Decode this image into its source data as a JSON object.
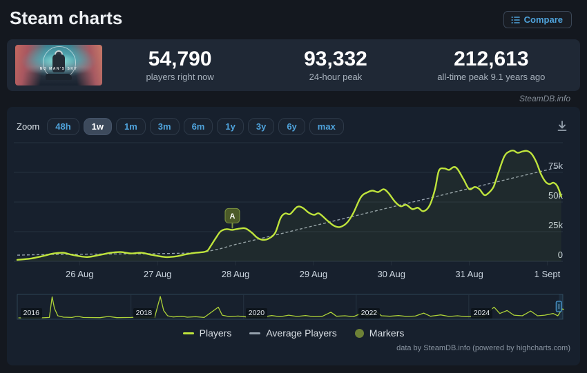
{
  "header": {
    "title": "Steam charts",
    "compare_label": "Compare"
  },
  "stats": {
    "capsule_title": "NO MAN'S SKY",
    "current": {
      "value": "54,790",
      "label": "players right now"
    },
    "peak24": {
      "value": "93,332",
      "label": "24-hour peak"
    },
    "alltime": {
      "value": "212,613",
      "label": "all-time peak 9.1 years ago"
    }
  },
  "watermark": "SteamDB.info",
  "toolbar": {
    "zoom_label": "Zoom",
    "ranges": [
      "48h",
      "1w",
      "1m",
      "3m",
      "6m",
      "1y",
      "3y",
      "6y",
      "max"
    ],
    "selected": "1w"
  },
  "legend": {
    "items": [
      {
        "label": "Players",
        "swatch": "line",
        "color": "#bfe43c"
      },
      {
        "label": "Average Players",
        "swatch": "line",
        "color": "#95a1ad"
      },
      {
        "label": "Markers",
        "swatch": "circle",
        "color": "#6d8136"
      }
    ]
  },
  "credits": "data by SteamDB.info (powered by highcharts.com)",
  "colors": {
    "page_bg": "#14181f",
    "stats_bg": "#1f2835",
    "panel_bg": "#17202d",
    "grid": "#263240",
    "axis_text": "#cbd5df",
    "players_line": "#bfe43c",
    "average_line": "#94a0ac",
    "accent_blue": "#4fa3dc",
    "marker_badge_bg": "#4b5a28",
    "marker_badge_border": "#7d9440"
  },
  "chart_data": {
    "type": "line",
    "x_axis": {
      "unit": "date",
      "tick_labels": [
        "26 Aug",
        "27 Aug",
        "28 Aug",
        "29 Aug",
        "30 Aug",
        "31 Aug",
        "1 Sept"
      ],
      "tick_days": [
        1,
        2,
        3,
        4,
        5,
        6,
        7
      ],
      "domain_days": [
        0.2,
        7.2
      ]
    },
    "y_axis": {
      "position": "right",
      "tick_labels": [
        "0",
        "25k",
        "50k",
        "75k"
      ],
      "tick_values": [
        0,
        25000,
        50000,
        75000
      ],
      "ylim": [
        0,
        100000
      ],
      "grid": true
    },
    "legend_position": "bottom",
    "series": [
      {
        "name": "Players",
        "color": "#bfe43c",
        "style": "solid",
        "points": [
          [
            0.2,
            1200
          ],
          [
            0.38,
            2400
          ],
          [
            0.51,
            4200
          ],
          [
            0.67,
            6600
          ],
          [
            0.79,
            7200
          ],
          [
            0.91,
            5400
          ],
          [
            1.09,
            3600
          ],
          [
            1.26,
            5400
          ],
          [
            1.4,
            7200
          ],
          [
            1.53,
            7800
          ],
          [
            1.66,
            6600
          ],
          [
            1.79,
            7200
          ],
          [
            1.93,
            5400
          ],
          [
            2.1,
            3600
          ],
          [
            2.24,
            4200
          ],
          [
            2.37,
            6000
          ],
          [
            2.49,
            7200
          ],
          [
            2.59,
            7800
          ],
          [
            2.64,
            9000
          ],
          [
            2.68,
            12700
          ],
          [
            2.75,
            19900
          ],
          [
            2.81,
            25300
          ],
          [
            2.88,
            27100
          ],
          [
            2.96,
            26500
          ],
          [
            3.06,
            27700
          ],
          [
            3.13,
            27700
          ],
          [
            3.21,
            24100
          ],
          [
            3.28,
            19900
          ],
          [
            3.35,
            18100
          ],
          [
            3.43,
            19300
          ],
          [
            3.51,
            24100
          ],
          [
            3.58,
            36700
          ],
          [
            3.64,
            40400
          ],
          [
            3.7,
            39800
          ],
          [
            3.79,
            45800
          ],
          [
            3.86,
            45200
          ],
          [
            3.94,
            41000
          ],
          [
            4.01,
            39200
          ],
          [
            4.07,
            40400
          ],
          [
            4.17,
            34900
          ],
          [
            4.26,
            30100
          ],
          [
            4.34,
            28900
          ],
          [
            4.43,
            32500
          ],
          [
            4.51,
            40400
          ],
          [
            4.61,
            54200
          ],
          [
            4.7,
            58400
          ],
          [
            4.76,
            59600
          ],
          [
            4.83,
            58400
          ],
          [
            4.9,
            60800
          ],
          [
            4.96,
            57800
          ],
          [
            5.05,
            50000
          ],
          [
            5.12,
            46400
          ],
          [
            5.19,
            47600
          ],
          [
            5.27,
            44000
          ],
          [
            5.34,
            45200
          ],
          [
            5.41,
            42200
          ],
          [
            5.49,
            47000
          ],
          [
            5.56,
            60800
          ],
          [
            5.61,
            76500
          ],
          [
            5.68,
            78300
          ],
          [
            5.74,
            77100
          ],
          [
            5.8,
            79500
          ],
          [
            5.85,
            77700
          ],
          [
            5.93,
            68700
          ],
          [
            6.0,
            60800
          ],
          [
            6.07,
            62700
          ],
          [
            6.13,
            60800
          ],
          [
            6.19,
            56000
          ],
          [
            6.24,
            57200
          ],
          [
            6.31,
            62700
          ],
          [
            6.37,
            74100
          ],
          [
            6.45,
            88600
          ],
          [
            6.52,
            92800
          ],
          [
            6.57,
            93332
          ],
          [
            6.62,
            91500
          ],
          [
            6.68,
            92600
          ],
          [
            6.74,
            93100
          ],
          [
            6.8,
            90500
          ],
          [
            6.86,
            83700
          ],
          [
            6.92,
            73500
          ],
          [
            6.98,
            66900
          ],
          [
            7.03,
            65100
          ],
          [
            7.08,
            66300
          ],
          [
            7.13,
            63300
          ],
          [
            7.18,
            54790
          ]
        ]
      },
      {
        "name": "Average Players",
        "color": "#95a1ad",
        "style": "dashed",
        "points": [
          [
            0.2,
            5200
          ],
          [
            0.6,
            5800
          ],
          [
            1.0,
            6000
          ],
          [
            1.5,
            6200
          ],
          [
            2.0,
            6400
          ],
          [
            2.4,
            6900
          ],
          [
            2.6,
            7800
          ],
          [
            2.8,
            10500
          ],
          [
            3.0,
            14200
          ],
          [
            3.5,
            22000
          ],
          [
            4.0,
            29900
          ],
          [
            4.5,
            37800
          ],
          [
            5.0,
            45700
          ],
          [
            5.5,
            53500
          ],
          [
            6.0,
            61400
          ],
          [
            6.5,
            69300
          ],
          [
            7.0,
            77100
          ],
          [
            7.18,
            80000
          ]
        ]
      }
    ],
    "markers": [
      {
        "label": "A",
        "day": 2.96,
        "value": 26500
      }
    ],
    "navigator": {
      "x_range_years": [
        2015.98,
        2025.67
      ],
      "year_tick_labels": [
        "2016",
        "2018",
        "2020",
        "2022",
        "2024"
      ],
      "year_tick_values": [
        2016,
        2018,
        2020,
        2022,
        2024
      ],
      "selected_range_years": [
        2025.6,
        2025.67
      ],
      "points": [
        [
          2016.0,
          0.03
        ],
        [
          2016.4,
          0.03
        ],
        [
          2016.55,
          0.05
        ],
        [
          2016.6,
          0.95
        ],
        [
          2016.64,
          0.45
        ],
        [
          2016.7,
          0.12
        ],
        [
          2016.8,
          0.06
        ],
        [
          2016.95,
          0.05
        ],
        [
          2017.05,
          0.1
        ],
        [
          2017.15,
          0.05
        ],
        [
          2017.45,
          0.04
        ],
        [
          2017.6,
          0.09
        ],
        [
          2017.75,
          0.04
        ],
        [
          2018.0,
          0.05
        ],
        [
          2018.2,
          0.07
        ],
        [
          2018.42,
          0.05
        ],
        [
          2018.52,
          0.97
        ],
        [
          2018.58,
          0.35
        ],
        [
          2018.65,
          0.12
        ],
        [
          2018.75,
          0.07
        ],
        [
          2018.9,
          0.1
        ],
        [
          2019.0,
          0.06
        ],
        [
          2019.15,
          0.08
        ],
        [
          2019.3,
          0.05
        ],
        [
          2019.55,
          0.5
        ],
        [
          2019.62,
          0.15
        ],
        [
          2019.75,
          0.08
        ],
        [
          2019.9,
          0.11
        ],
        [
          2020.05,
          0.07
        ],
        [
          2020.2,
          0.12
        ],
        [
          2020.35,
          0.07
        ],
        [
          2020.5,
          0.13
        ],
        [
          2020.65,
          0.08
        ],
        [
          2020.8,
          0.15
        ],
        [
          2020.95,
          0.09
        ],
        [
          2021.1,
          0.13
        ],
        [
          2021.25,
          0.08
        ],
        [
          2021.4,
          0.1
        ],
        [
          2021.55,
          0.28
        ],
        [
          2021.65,
          0.1
        ],
        [
          2021.8,
          0.12
        ],
        [
          2021.95,
          0.08
        ],
        [
          2022.1,
          0.24
        ],
        [
          2022.2,
          0.1
        ],
        [
          2022.35,
          0.3
        ],
        [
          2022.45,
          0.12
        ],
        [
          2022.6,
          0.1
        ],
        [
          2022.75,
          0.13
        ],
        [
          2022.9,
          0.09
        ],
        [
          2023.05,
          0.11
        ],
        [
          2023.2,
          0.24
        ],
        [
          2023.32,
          0.1
        ],
        [
          2023.5,
          0.16
        ],
        [
          2023.65,
          0.09
        ],
        [
          2023.8,
          0.12
        ],
        [
          2023.95,
          0.08
        ],
        [
          2024.1,
          0.1
        ],
        [
          2024.25,
          0.09
        ],
        [
          2024.45,
          0.5
        ],
        [
          2024.55,
          0.22
        ],
        [
          2024.68,
          0.35
        ],
        [
          2024.8,
          0.15
        ],
        [
          2024.95,
          0.12
        ],
        [
          2025.1,
          0.33
        ],
        [
          2025.22,
          0.12
        ],
        [
          2025.35,
          0.15
        ],
        [
          2025.5,
          0.22
        ],
        [
          2025.58,
          0.12
        ],
        [
          2025.66,
          0.42
        ],
        [
          2025.69,
          0.4
        ]
      ]
    }
  }
}
